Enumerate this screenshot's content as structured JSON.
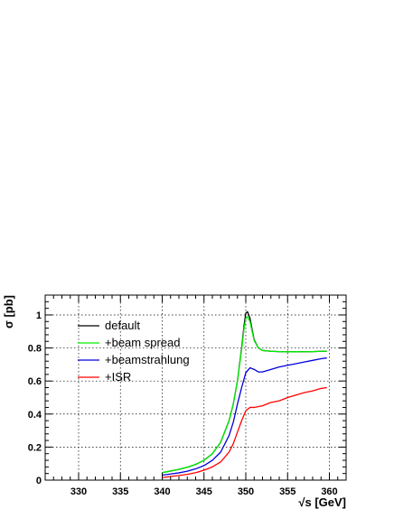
{
  "chart_data": {
    "type": "line",
    "title": "",
    "xlabel": "√s [GeV]",
    "ylabel": "σ [pb]",
    "xlim": [
      326,
      362
    ],
    "ylim": [
      0,
      1.12
    ],
    "xticks": [
      330,
      335,
      340,
      345,
      350,
      355,
      360
    ],
    "yticks": [
      0,
      0.2,
      0.4,
      0.6,
      0.8,
      1
    ],
    "ytick_labels": [
      "0",
      "0.2",
      "0.4",
      "0.6",
      "0.8",
      "1"
    ],
    "grid": true,
    "legend_position": "upper-left",
    "series": [
      {
        "name": "default",
        "color": "#000000",
        "points": [
          [
            340,
            0.045
          ],
          [
            341,
            0.055
          ],
          [
            342,
            0.065
          ],
          [
            343,
            0.078
          ],
          [
            344,
            0.095
          ],
          [
            345,
            0.12
          ],
          [
            346,
            0.16
          ],
          [
            347,
            0.23
          ],
          [
            348,
            0.36
          ],
          [
            348.5,
            0.46
          ],
          [
            349,
            0.6
          ],
          [
            349.5,
            0.8
          ],
          [
            349.8,
            0.94
          ],
          [
            350,
            1.01
          ],
          [
            350.2,
            1.02
          ],
          [
            350.5,
            0.98
          ],
          [
            350.8,
            0.9
          ],
          [
            351,
            0.85
          ],
          [
            351.5,
            0.8
          ],
          [
            352,
            0.785
          ],
          [
            353,
            0.78
          ],
          [
            354,
            0.778
          ],
          [
            355,
            0.776
          ],
          [
            356,
            0.778
          ],
          [
            357,
            0.777
          ],
          [
            358,
            0.778
          ],
          [
            359,
            0.78
          ],
          [
            359.7,
            0.78
          ]
        ]
      },
      {
        "name": "+beam spread",
        "color": "#00ee00",
        "points": [
          [
            340,
            0.045
          ],
          [
            341,
            0.055
          ],
          [
            342,
            0.065
          ],
          [
            343,
            0.078
          ],
          [
            344,
            0.095
          ],
          [
            345,
            0.12
          ],
          [
            346,
            0.16
          ],
          [
            347,
            0.23
          ],
          [
            348,
            0.36
          ],
          [
            348.5,
            0.46
          ],
          [
            349,
            0.6
          ],
          [
            349.5,
            0.79
          ],
          [
            349.8,
            0.92
          ],
          [
            350,
            0.98
          ],
          [
            350.2,
            0.99
          ],
          [
            350.5,
            0.96
          ],
          [
            350.8,
            0.89
          ],
          [
            351,
            0.845
          ],
          [
            351.5,
            0.8
          ],
          [
            352,
            0.785
          ],
          [
            353,
            0.78
          ],
          [
            354,
            0.778
          ],
          [
            355,
            0.776
          ],
          [
            356,
            0.778
          ],
          [
            357,
            0.777
          ],
          [
            358,
            0.778
          ],
          [
            359,
            0.78
          ],
          [
            359.7,
            0.78
          ]
        ]
      },
      {
        "name": "+beamstrahlung",
        "color": "#0000dd",
        "points": [
          [
            340,
            0.03
          ],
          [
            341,
            0.037
          ],
          [
            342,
            0.044
          ],
          [
            343,
            0.054
          ],
          [
            344,
            0.068
          ],
          [
            345,
            0.088
          ],
          [
            346,
            0.12
          ],
          [
            347,
            0.17
          ],
          [
            348,
            0.27
          ],
          [
            348.5,
            0.35
          ],
          [
            349,
            0.46
          ],
          [
            349.5,
            0.56
          ],
          [
            350,
            0.65
          ],
          [
            350.5,
            0.68
          ],
          [
            351,
            0.67
          ],
          [
            351.5,
            0.655
          ],
          [
            352,
            0.655
          ],
          [
            353,
            0.67
          ],
          [
            354,
            0.685
          ],
          [
            355,
            0.695
          ],
          [
            356,
            0.705
          ],
          [
            357,
            0.715
          ],
          [
            358,
            0.725
          ],
          [
            359,
            0.735
          ],
          [
            359.7,
            0.74
          ]
        ]
      },
      {
        "name": "+ISR",
        "color": "#ff0000",
        "points": [
          [
            340,
            0.015
          ],
          [
            341,
            0.022
          ],
          [
            342,
            0.028
          ],
          [
            343,
            0.035
          ],
          [
            344,
            0.045
          ],
          [
            345,
            0.06
          ],
          [
            346,
            0.08
          ],
          [
            347,
            0.11
          ],
          [
            348,
            0.17
          ],
          [
            348.5,
            0.22
          ],
          [
            349,
            0.29
          ],
          [
            349.5,
            0.36
          ],
          [
            350,
            0.42
          ],
          [
            350.5,
            0.44
          ],
          [
            351,
            0.44
          ],
          [
            352,
            0.45
          ],
          [
            353,
            0.47
          ],
          [
            354,
            0.48
          ],
          [
            355,
            0.5
          ],
          [
            356,
            0.515
          ],
          [
            357,
            0.53
          ],
          [
            358,
            0.54
          ],
          [
            359,
            0.555
          ],
          [
            359.7,
            0.56
          ]
        ]
      }
    ]
  }
}
